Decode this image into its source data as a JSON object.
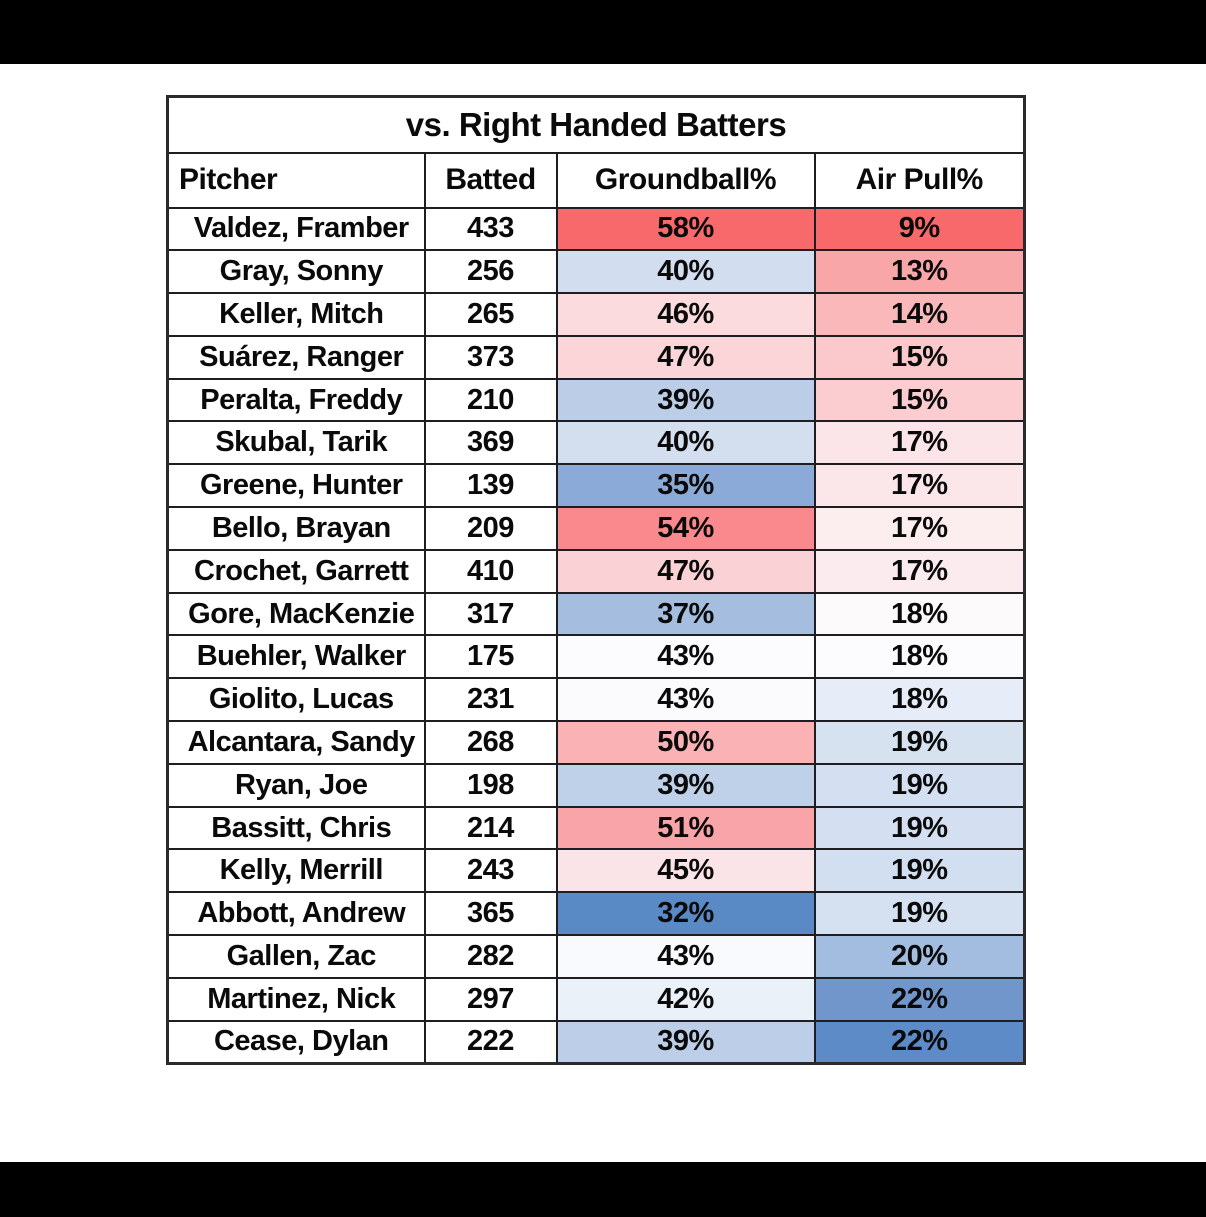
{
  "page": {
    "outer_background": "#000000",
    "canvas_background": "#ffffff",
    "grid_color": "#1d1d22"
  },
  "chart_data": {
    "type": "table",
    "title": "vs. Right Handed Batters",
    "columns": [
      "Pitcher",
      "Batted",
      "Groundball%",
      "Air Pull%"
    ],
    "color_scale": {
      "blue": "#5A8AC6",
      "white": "#FCFCFF",
      "red": "#F8696B"
    },
    "rows": [
      {
        "pitcher": "Valdez, Framber",
        "batted": "433",
        "groundball_pct": "58%",
        "groundball_color": "#F8696B",
        "air_pull_pct": "9%",
        "air_pull_color": "#F8696B"
      },
      {
        "pitcher": "Gray, Sonny",
        "batted": "256",
        "groundball_pct": "40%",
        "groundball_color": "#D2DEEF",
        "air_pull_pct": "13%",
        "air_pull_color": "#F9A6A9"
      },
      {
        "pitcher": "Keller, Mitch",
        "batted": "265",
        "groundball_pct": "46%",
        "groundball_color": "#FBDBDE",
        "air_pull_pct": "14%",
        "air_pull_color": "#FAB8BB"
      },
      {
        "pitcher": "Suárez, Ranger",
        "batted": "373",
        "groundball_pct": "47%",
        "groundball_color": "#FBD5D8",
        "air_pull_pct": "15%",
        "air_pull_color": "#FBC9CC"
      },
      {
        "pitcher": "Peralta, Freddy",
        "batted": "210",
        "groundball_pct": "39%",
        "groundball_color": "#BCCDE7",
        "air_pull_pct": "15%",
        "air_pull_color": "#FBCDD0"
      },
      {
        "pitcher": "Skubal, Tarik",
        "batted": "369",
        "groundball_pct": "40%",
        "groundball_color": "#D3DFEF",
        "air_pull_pct": "17%",
        "air_pull_color": "#FBE5E8"
      },
      {
        "pitcher": "Greene, Hunter",
        "batted": "139",
        "groundball_pct": "35%",
        "groundball_color": "#8BAAD7",
        "air_pull_pct": "17%",
        "air_pull_color": "#FBE7EA"
      },
      {
        "pitcher": "Bello, Brayan",
        "batted": "209",
        "groundball_pct": "54%",
        "groundball_color": "#F9898D",
        "air_pull_pct": "17%",
        "air_pull_color": "#FCEDEF"
      },
      {
        "pitcher": "Crochet, Garrett",
        "batted": "410",
        "groundball_pct": "47%",
        "groundball_color": "#FAD2D6",
        "air_pull_pct": "17%",
        "air_pull_color": "#FCEBEE"
      },
      {
        "pitcher": "Gore, MacKenzie",
        "batted": "317",
        "groundball_pct": "37%",
        "groundball_color": "#A5BEE0",
        "air_pull_pct": "18%",
        "air_pull_color": "#FDFAFC"
      },
      {
        "pitcher": "Buehler, Walker",
        "batted": "175",
        "groundball_pct": "43%",
        "groundball_color": "#FCFBFE",
        "air_pull_pct": "18%",
        "air_pull_color": "#FCFCFF"
      },
      {
        "pitcher": "Giolito, Lucas",
        "batted": "231",
        "groundball_pct": "43%",
        "groundball_color": "#FBFAFD",
        "air_pull_pct": "18%",
        "air_pull_color": "#E7EDF8"
      },
      {
        "pitcher": "Alcantara, Sandy",
        "batted": "268",
        "groundball_pct": "50%",
        "groundball_color": "#FAB2B5",
        "air_pull_pct": "19%",
        "air_pull_color": "#D7E2F1"
      },
      {
        "pitcher": "Ryan, Joe",
        "batted": "198",
        "groundball_pct": "39%",
        "groundball_color": "#BFD0E9",
        "air_pull_pct": "19%",
        "air_pull_color": "#D4E0F1"
      },
      {
        "pitcher": "Bassitt, Chris",
        "batted": "214",
        "groundball_pct": "51%",
        "groundball_color": "#F9A4A8",
        "air_pull_pct": "19%",
        "air_pull_color": "#D4E0F1"
      },
      {
        "pitcher": "Kelly, Merrill",
        "batted": "243",
        "groundball_pct": "45%",
        "groundball_color": "#FBE4E7",
        "air_pull_pct": "19%",
        "air_pull_color": "#D2DFF0"
      },
      {
        "pitcher": "Abbott, Andrew",
        "batted": "365",
        "groundball_pct": "32%",
        "groundball_color": "#5A8AC6",
        "air_pull_pct": "19%",
        "air_pull_color": "#D5E1F1"
      },
      {
        "pitcher": "Gallen, Zac",
        "batted": "282",
        "groundball_pct": "43%",
        "groundball_color": "#F8FAFD",
        "air_pull_pct": "20%",
        "air_pull_color": "#A3BDE0"
      },
      {
        "pitcher": "Martinez, Nick",
        "batted": "297",
        "groundball_pct": "42%",
        "groundball_color": "#EBF1F9",
        "air_pull_pct": "22%",
        "air_pull_color": "#7096CC"
      },
      {
        "pitcher": "Cease, Dylan",
        "batted": "222",
        "groundball_pct": "39%",
        "groundball_color": "#BDCEE8",
        "air_pull_pct": "22%",
        "air_pull_color": "#5C8BC7"
      }
    ]
  }
}
